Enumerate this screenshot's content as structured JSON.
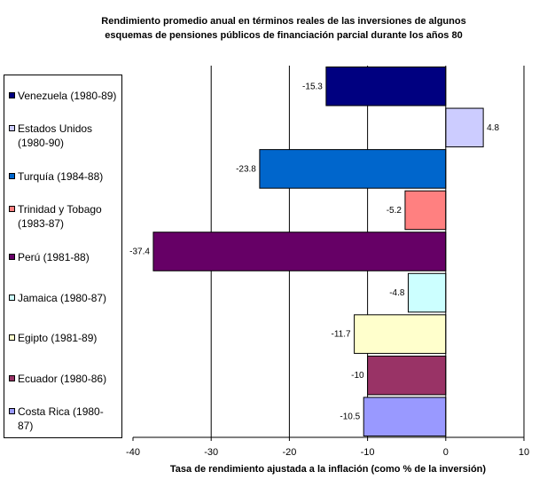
{
  "chart_data": {
    "type": "bar",
    "orientation": "horizontal",
    "title_lines": [
      "Rendimiento promedio anual en términos reales de las inversiones de algunos",
      "esquemas de pensiones públicos de financiación parcial durante los años 80"
    ],
    "xlabel": "Tasa de rendimiento ajustada a la inflación (como % de la inversión)",
    "xlim": [
      -40,
      10
    ],
    "xticks": [
      -40,
      -30,
      -20,
      -10,
      0,
      10
    ],
    "grid": true,
    "legend_position": "left",
    "series": [
      {
        "name": "Venezuela (1980-89)",
        "legend_lines": [
          "Venezuela (1980-89)"
        ],
        "value": -15.3,
        "label": "-15.3",
        "color": "#000080"
      },
      {
        "name": "Estados Unidos (1980-90)",
        "legend_lines": [
          "Estados Unidos",
          "(1980-90)"
        ],
        "value": 4.8,
        "label": "4.8",
        "color": "#ccccff"
      },
      {
        "name": "Turquía (1984-88)",
        "legend_lines": [
          "Turquía (1984-88)"
        ],
        "value": -23.8,
        "label": "-23.8",
        "color": "#0066cc"
      },
      {
        "name": "Trinidad y Tobago (1983-87)",
        "legend_lines": [
          "Trinidad y Tobago",
          "(1983-87)"
        ],
        "value": -5.2,
        "label": "-5.2",
        "color": "#ff8080"
      },
      {
        "name": "Perú (1981-88)",
        "legend_lines": [
          "Perú (1981-88)"
        ],
        "value": -37.4,
        "label": "-37.4",
        "color": "#660066"
      },
      {
        "name": "Jamaica (1980-87)",
        "legend_lines": [
          "Jamaica (1980-87)"
        ],
        "value": -4.8,
        "label": "-4.8",
        "color": "#ccffff"
      },
      {
        "name": "Egipto (1981-89)",
        "legend_lines": [
          "Egipto (1981-89)"
        ],
        "value": -11.7,
        "label": "-11.7",
        "color": "#ffffcc"
      },
      {
        "name": "Ecuador (1980-86)",
        "legend_lines": [
          "Ecuador (1980-86)"
        ],
        "value": -10,
        "label": "-10",
        "color": "#993366"
      },
      {
        "name": "Costa Rica (1980-87)",
        "legend_lines": [
          "Costa Rica (1980-",
          "87)"
        ],
        "value": -10.5,
        "label": "-10.5",
        "color": "#9999ff"
      }
    ]
  }
}
